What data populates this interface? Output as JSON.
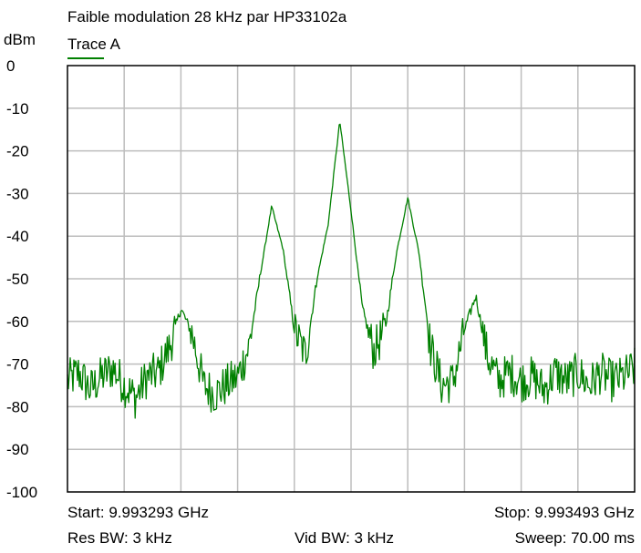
{
  "chart_data": {
    "type": "line",
    "title": "Faible modulation 28 kHz par HP33102a",
    "ylabel": "dBm",
    "ylim": [
      -100,
      0
    ],
    "yticks": [
      "0",
      "-10",
      "-20",
      "-30",
      "-40",
      "-50",
      "-60",
      "-70",
      "-80",
      "-90",
      "-100"
    ],
    "grid": true,
    "x_divisions": 10,
    "x_unit": "GHz",
    "xlim": [
      9.993293,
      9.993493
    ],
    "series": [
      {
        "name": "Trace A",
        "color": "#008000",
        "x_offset_khz": [
          0,
          4,
          8,
          12,
          16,
          20,
          24,
          28,
          32,
          36,
          40,
          44,
          48,
          52,
          56,
          60,
          64,
          68,
          72,
          76,
          80,
          84,
          88,
          92,
          96,
          100,
          104,
          108,
          112,
          116,
          120,
          124,
          128,
          132,
          136,
          140,
          144,
          148,
          152,
          156,
          160,
          164,
          168,
          172,
          176,
          180,
          184,
          188,
          192,
          196,
          200
        ],
        "values": [
          -74,
          -72,
          -76,
          -73,
          -71,
          -75,
          -78,
          -73,
          -72,
          -66,
          -57,
          -63,
          -75,
          -77,
          -75,
          -73,
          -66,
          -49,
          -33,
          -43,
          -62,
          -68,
          -50,
          -37,
          -13,
          -34,
          -57,
          -67,
          -62,
          -44,
          -31,
          -44,
          -66,
          -75,
          -74,
          -62,
          -54,
          -68,
          -74,
          -72,
          -74,
          -73,
          -76,
          -72,
          -74,
          -72,
          -75,
          -72,
          -74,
          -73,
          -71
        ]
      }
    ]
  },
  "footer": {
    "start": "Start: 9.993293 GHz",
    "stop": "Stop: 9.993493 GHz",
    "res_bw": "Res BW: 3 kHz",
    "vid_bw": "Vid BW: 3 kHz",
    "sweep": "Sweep: 70.00 ms"
  }
}
